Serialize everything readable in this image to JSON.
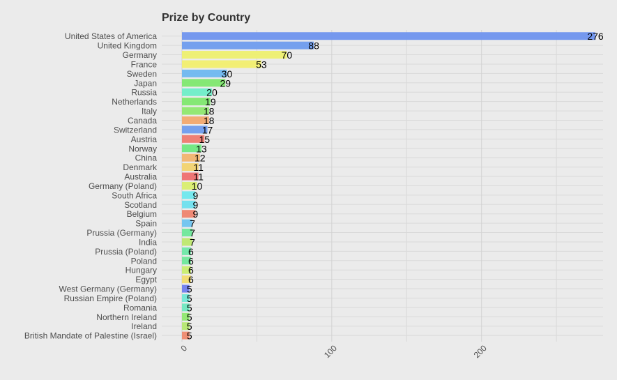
{
  "chart_data": {
    "type": "bar",
    "orientation": "horizontal",
    "title": "Prize by Country",
    "xlabel": "",
    "ylabel": "",
    "xlim": [
      0,
      288
    ],
    "x_ticks": [
      0,
      100,
      200
    ],
    "grid": true,
    "legend": "none",
    "categories": [
      "United States of America",
      "United Kingdom",
      "Germany",
      "France",
      "Sweden",
      "Japan",
      "Russia",
      "Netherlands",
      "Italy",
      "Canada",
      "Switzerland",
      "Austria",
      "Norway",
      "China",
      "Denmark",
      "Australia",
      "Germany (Poland)",
      "South Africa",
      "Scotland",
      "Belgium",
      "Spain",
      "Prussia (Germany)",
      "India",
      "Prussia (Poland)",
      "Poland",
      "Hungary",
      "Egypt",
      "West Germany (Germany)",
      "Russian Empire (Poland)",
      "Romania",
      "Northern Ireland",
      "Ireland",
      "British Mandate of Palestine (Israel)"
    ],
    "values": [
      276,
      88,
      70,
      53,
      30,
      29,
      20,
      19,
      18,
      18,
      17,
      15,
      13,
      12,
      11,
      11,
      10,
      9,
      9,
      9,
      7,
      7,
      7,
      6,
      6,
      6,
      6,
      5,
      5,
      5,
      5,
      5,
      5
    ],
    "colors": [
      "#6f94ee",
      "#6f9cee",
      "#eef06f",
      "#f2ef6f",
      "#6fb8f0",
      "#7fe86f",
      "#6feec8",
      "#7fe86f",
      "#8fe86f",
      "#f2a96f",
      "#6f9cee",
      "#ef7a6f",
      "#6fe87f",
      "#f2b46f",
      "#f2d36f",
      "#ef6f6f",
      "#d9ee6f",
      "#6fe8ee",
      "#6fe0ee",
      "#ef846f",
      "#6fc4f0",
      "#6fe89a",
      "#bfe86f",
      "#6fe8a8",
      "#6fe89a",
      "#c9ee6f",
      "#f2dc6f",
      "#6f7cee",
      "#6fe8d6",
      "#6fe8c0",
      "#8fe86f",
      "#b5e86f",
      "#ef8a6f"
    ]
  }
}
